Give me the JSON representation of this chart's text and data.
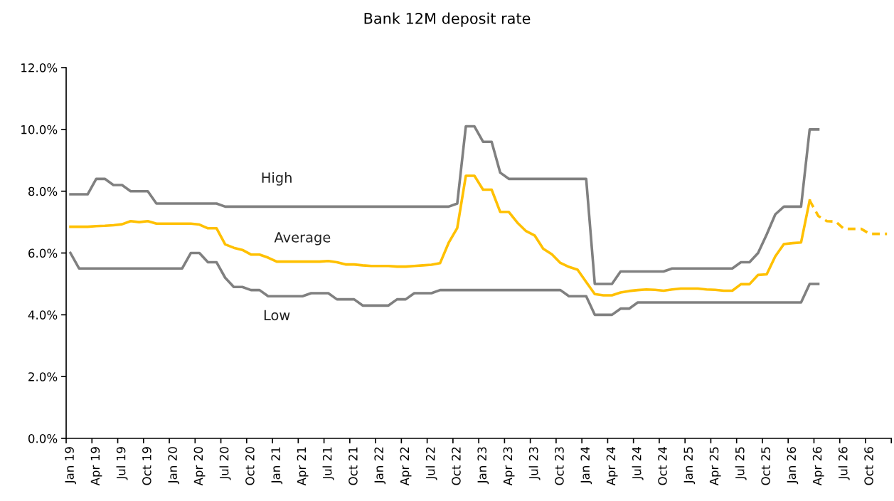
{
  "chart_data": {
    "type": "line",
    "title": "Bank 12M deposit rate",
    "categories": [
      "Jan 19",
      null,
      null,
      "Apr 19",
      null,
      null,
      "Jul 19",
      null,
      null,
      "Oct 19",
      null,
      null,
      "Jan 20",
      null,
      null,
      "Apr 20",
      null,
      null,
      "Jul 20",
      null,
      null,
      "Oct 20",
      null,
      null,
      "Jan 21",
      null,
      null,
      "Apr 21",
      null,
      null,
      "Jul 21",
      null,
      null,
      "Oct 21",
      null,
      null,
      "Jan 22",
      null,
      null,
      "Apr 22",
      null,
      null,
      "Jul 22",
      null,
      null,
      "Oct 22",
      null,
      null,
      "Jan 23",
      null,
      null,
      "Apr 23",
      null,
      null,
      "Jul 23",
      null,
      null,
      "Oct 23",
      null,
      null,
      "Jan 24",
      null,
      null,
      "Apr 24",
      null,
      null,
      "Jul 24",
      null,
      null,
      "Oct 24",
      null,
      null,
      "Jan 25",
      null,
      null,
      "Apr 25",
      null,
      null,
      "Jul 25",
      null,
      null,
      "Oct 25",
      null,
      null,
      "Jan 26",
      null,
      null,
      "Apr 26",
      null,
      null,
      "Jul 26",
      null,
      null,
      "Oct 26",
      null,
      null
    ],
    "series": [
      {
        "name": "High",
        "color": "#808080",
        "line_style": "solid",
        "values": [
          7.9,
          7.9,
          7.9,
          8.4,
          8.4,
          8.2,
          8.2,
          8.0,
          8.0,
          8.0,
          7.6,
          7.6,
          7.6,
          7.6,
          7.6,
          7.6,
          7.6,
          7.6,
          7.5,
          7.5,
          7.5,
          7.5,
          7.5,
          7.5,
          7.5,
          7.5,
          7.5,
          7.5,
          7.5,
          7.5,
          7.5,
          7.5,
          7.5,
          7.5,
          7.5,
          7.5,
          7.5,
          7.5,
          7.5,
          7.5,
          7.5,
          7.5,
          7.5,
          7.5,
          7.5,
          7.6,
          10.1,
          10.1,
          9.6,
          9.6,
          8.6,
          8.4,
          8.4,
          8.4,
          8.4,
          8.4,
          8.4,
          8.4,
          8.4,
          8.4,
          8.4,
          5.0,
          5.0,
          5.0,
          5.4,
          5.4,
          5.4,
          5.4,
          5.4,
          5.4,
          5.5,
          5.5,
          5.5,
          5.5,
          5.5,
          5.5,
          5.5,
          5.5,
          5.7,
          5.7,
          6.0,
          6.6,
          7.25,
          7.5,
          7.5,
          7.5,
          10.0,
          10.0,
          null,
          null,
          null,
          null,
          null,
          null,
          null,
          null
        ]
      },
      {
        "name": "Average",
        "color": "#ffc000",
        "line_style": "solid",
        "values": [
          6.85,
          6.85,
          6.85,
          6.87,
          6.88,
          6.9,
          6.93,
          7.03,
          7.0,
          7.03,
          6.95,
          6.95,
          6.95,
          6.95,
          6.95,
          6.92,
          6.8,
          6.8,
          6.28,
          6.17,
          6.1,
          5.95,
          5.95,
          5.85,
          5.72,
          5.72,
          5.72,
          5.72,
          5.72,
          5.72,
          5.74,
          5.7,
          5.63,
          5.63,
          5.6,
          5.58,
          5.58,
          5.58,
          5.56,
          5.56,
          5.58,
          5.6,
          5.62,
          5.67,
          6.33,
          6.81,
          8.5,
          8.5,
          8.05,
          8.05,
          7.33,
          7.33,
          6.98,
          6.71,
          6.57,
          6.14,
          5.96,
          5.68,
          5.55,
          5.46,
          5.06,
          4.67,
          4.63,
          4.63,
          4.72,
          4.77,
          4.8,
          4.82,
          4.81,
          4.78,
          4.82,
          4.85,
          4.85,
          4.85,
          4.82,
          4.81,
          4.78,
          4.78,
          4.99,
          4.99,
          5.29,
          5.31,
          5.89,
          6.29,
          6.32,
          6.34,
          7.7,
          null,
          null,
          null,
          null,
          null,
          null,
          null,
          null,
          null
        ]
      },
      {
        "color": "#ffc000",
        "line_style": "dashed",
        "values": [
          null,
          null,
          null,
          null,
          null,
          null,
          null,
          null,
          null,
          null,
          null,
          null,
          null,
          null,
          null,
          null,
          null,
          null,
          null,
          null,
          null,
          null,
          null,
          null,
          null,
          null,
          null,
          null,
          null,
          null,
          null,
          null,
          null,
          null,
          null,
          null,
          null,
          null,
          null,
          null,
          null,
          null,
          null,
          null,
          null,
          null,
          null,
          null,
          null,
          null,
          null,
          null,
          null,
          null,
          null,
          null,
          null,
          null,
          null,
          null,
          null,
          null,
          null,
          null,
          null,
          null,
          null,
          null,
          null,
          null,
          null,
          null,
          null,
          null,
          null,
          null,
          null,
          null,
          null,
          null,
          null,
          null,
          null,
          null,
          null,
          null,
          7.7,
          7.2,
          7.03,
          7.02,
          6.78,
          6.78,
          6.78,
          6.62,
          6.62,
          6.62
        ]
      },
      {
        "name": "Low",
        "color": "#808080",
        "line_style": "solid",
        "values": [
          6.0,
          5.5,
          5.5,
          5.5,
          5.5,
          5.5,
          5.5,
          5.5,
          5.5,
          5.5,
          5.5,
          5.5,
          5.5,
          5.5,
          6.0,
          6.0,
          5.7,
          5.7,
          5.2,
          4.9,
          4.9,
          4.8,
          4.8,
          4.6,
          4.6,
          4.6,
          4.6,
          4.6,
          4.7,
          4.7,
          4.7,
          4.5,
          4.5,
          4.5,
          4.3,
          4.3,
          4.3,
          4.3,
          4.5,
          4.5,
          4.7,
          4.7,
          4.7,
          4.8,
          4.8,
          4.8,
          4.8,
          4.8,
          4.8,
          4.8,
          4.8,
          4.8,
          4.8,
          4.8,
          4.8,
          4.8,
          4.8,
          4.8,
          4.6,
          4.6,
          4.6,
          4.0,
          4.0,
          4.0,
          4.2,
          4.2,
          4.4,
          4.4,
          4.4,
          4.4,
          4.4,
          4.4,
          4.4,
          4.4,
          4.4,
          4.4,
          4.4,
          4.4,
          4.4,
          4.4,
          4.4,
          4.4,
          4.4,
          4.4,
          4.4,
          4.4,
          5.0,
          5.0,
          null,
          null,
          null,
          null,
          null,
          null,
          null,
          null
        ]
      }
    ],
    "ylim": [
      0,
      12
    ],
    "yticks": [
      {
        "value": 0,
        "label": "0.0%"
      },
      {
        "value": 2,
        "label": "2.0%"
      },
      {
        "value": 4,
        "label": "4.0%"
      },
      {
        "value": 6,
        "label": "6.0%"
      },
      {
        "value": 8,
        "label": "8.0%"
      },
      {
        "value": 10,
        "label": "10.0%"
      },
      {
        "value": 12,
        "label": "12.0%"
      }
    ],
    "grid": false,
    "legend": false,
    "marker": "none"
  }
}
